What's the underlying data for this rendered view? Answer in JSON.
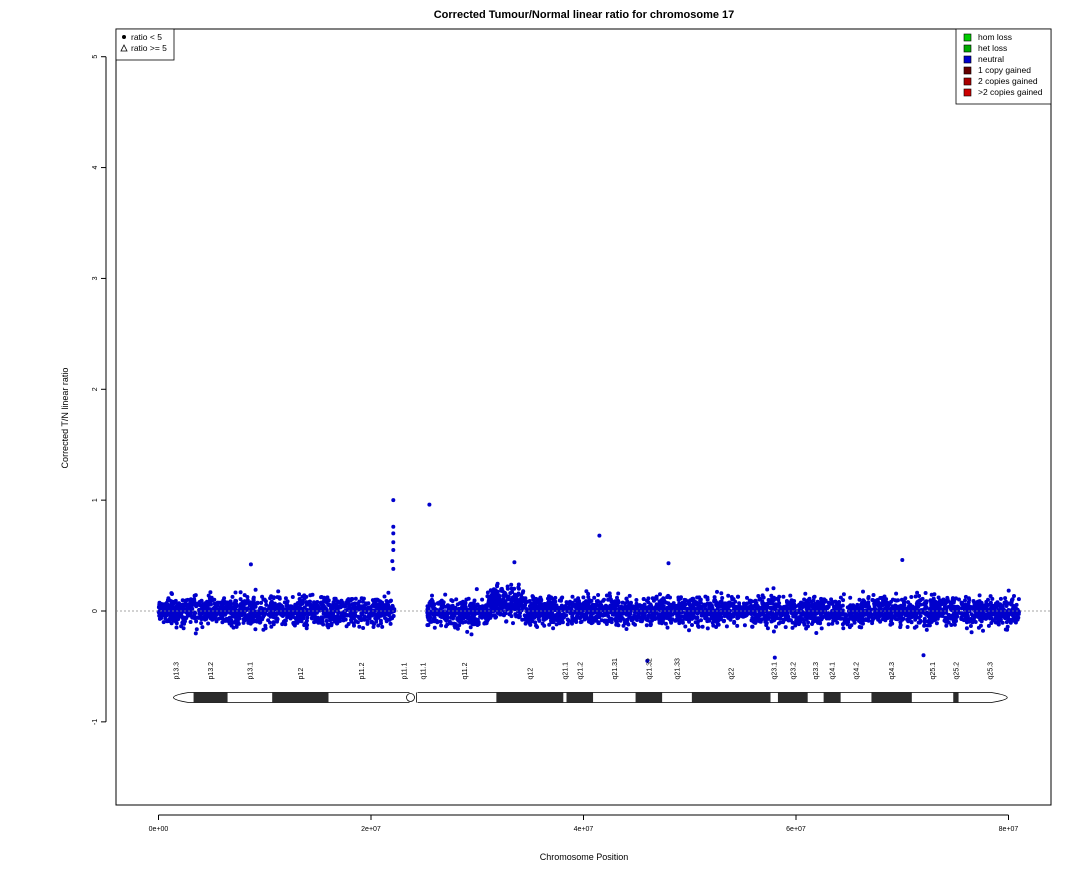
{
  "chart_data": {
    "type": "scatter",
    "title": "Corrected Tumour/Normal linear ratio for chromosome  17",
    "xlabel": "Chromosome Position",
    "ylabel": "Corrected T/N linear ratio",
    "xlim": [
      -4000000,
      84000000
    ],
    "ylim": [
      -1.75,
      5.25
    ],
    "x_ticks": [
      0,
      20000000,
      40000000,
      60000000,
      80000000
    ],
    "x_tick_labels": [
      "0e+00",
      "2e+07",
      "4e+07",
      "6e+07",
      "8e+07"
    ],
    "y_ticks": [
      -1,
      0,
      1,
      2,
      3,
      4,
      5
    ],
    "y_tick_labels": [
      "-1",
      "0",
      "1",
      "2",
      "3",
      "4",
      "5"
    ],
    "reference_line_y": 0,
    "point_color": "#0000cc",
    "legend_shape": {
      "position": "top-left",
      "items": [
        {
          "label": "ratio < 5",
          "marker": "filled-circle"
        },
        {
          "label": "ratio >= 5",
          "marker": "open-triangle"
        }
      ]
    },
    "legend_state": {
      "position": "top-right",
      "items": [
        {
          "label": "hom loss",
          "color": "#00cc00"
        },
        {
          "label": "het loss",
          "color": "#00aa00"
        },
        {
          "label": "neutral",
          "color": "#0000cc"
        },
        {
          "label": "1 copy gained",
          "color": "#660000"
        },
        {
          "label": "2 copies gained",
          "color": "#aa0000"
        },
        {
          "label": ">2 copies gained",
          "color": "#cc0000"
        }
      ]
    },
    "series": [
      {
        "segments": [
          {
            "start": 0,
            "end": 22200000,
            "mean": 0.0,
            "sd": 0.1,
            "count": 1250
          },
          {
            "start": 25300000,
            "end": 31000000,
            "mean": -0.02,
            "sd": 0.1,
            "count": 320
          },
          {
            "start": 31000000,
            "end": 34500000,
            "mean": 0.07,
            "sd": 0.11,
            "count": 230
          },
          {
            "start": 34500000,
            "end": 81000000,
            "mean": 0.0,
            "sd": 0.1,
            "count": 2700
          }
        ],
        "highlight_points": [
          {
            "x": 22100000,
            "y": 1.0
          },
          {
            "x": 22100000,
            "y": 0.76
          },
          {
            "x": 22100000,
            "y": 0.7
          },
          {
            "x": 22100000,
            "y": 0.62
          },
          {
            "x": 22100000,
            "y": 0.55
          },
          {
            "x": 22000000,
            "y": 0.45
          },
          {
            "x": 22100000,
            "y": 0.38
          },
          {
            "x": 25500000,
            "y": 0.96
          },
          {
            "x": 41500000,
            "y": 0.68
          },
          {
            "x": 46000000,
            "y": -0.45
          },
          {
            "x": 72000000,
            "y": -0.4
          },
          {
            "x": 58000000,
            "y": -0.42
          },
          {
            "x": 70000000,
            "y": 0.46
          },
          {
            "x": 33500000,
            "y": 0.44
          },
          {
            "x": 8700000,
            "y": 0.42
          },
          {
            "x": 48000000,
            "y": 0.43
          }
        ]
      }
    ],
    "ideogram": {
      "y": -0.78,
      "centromere": 24000000,
      "bands": [
        {
          "name": "p13.3",
          "start": 0,
          "end": 3300000,
          "stain": "gneg"
        },
        {
          "name": "p13.2",
          "start": 3300000,
          "end": 6500000,
          "stain": "gpos"
        },
        {
          "name": "p13.1",
          "start": 6500000,
          "end": 10700000,
          "stain": "gneg"
        },
        {
          "name": "p12",
          "start": 10700000,
          "end": 16000000,
          "stain": "gpos"
        },
        {
          "name": "p11.2",
          "start": 16000000,
          "end": 22200000,
          "stain": "gneg"
        },
        {
          "name": "p11.1",
          "start": 22200000,
          "end": 24000000,
          "stain": "acen"
        },
        {
          "name": "q11.1",
          "start": 24000000,
          "end": 25800000,
          "stain": "acen"
        },
        {
          "name": "q11.2",
          "start": 25800000,
          "end": 31800000,
          "stain": "gneg"
        },
        {
          "name": "q12",
          "start": 31800000,
          "end": 38100000,
          "stain": "gpos"
        },
        {
          "name": "q21.1",
          "start": 38100000,
          "end": 38400000,
          "stain": "gneg"
        },
        {
          "name": "q21.2",
          "start": 38400000,
          "end": 40900000,
          "stain": "gpos"
        },
        {
          "name": "q21.31",
          "start": 40900000,
          "end": 44900000,
          "stain": "gneg"
        },
        {
          "name": "q21.32",
          "start": 44900000,
          "end": 47400000,
          "stain": "gpos"
        },
        {
          "name": "q21.33",
          "start": 47400000,
          "end": 50200000,
          "stain": "gneg"
        },
        {
          "name": "q22",
          "start": 50200000,
          "end": 57600000,
          "stain": "gpos"
        },
        {
          "name": "q23.1",
          "start": 57600000,
          "end": 58300000,
          "stain": "gneg"
        },
        {
          "name": "q23.2",
          "start": 58300000,
          "end": 61100000,
          "stain": "gpos"
        },
        {
          "name": "q23.3",
          "start": 61100000,
          "end": 62600000,
          "stain": "gneg"
        },
        {
          "name": "q24.1",
          "start": 62600000,
          "end": 64200000,
          "stain": "gpos"
        },
        {
          "name": "q24.2",
          "start": 64200000,
          "end": 67100000,
          "stain": "gneg"
        },
        {
          "name": "q24.3",
          "start": 67100000,
          "end": 70900000,
          "stain": "gpos"
        },
        {
          "name": "q25.1",
          "start": 70900000,
          "end": 74800000,
          "stain": "gneg"
        },
        {
          "name": "q25.2",
          "start": 74800000,
          "end": 75300000,
          "stain": "gpos"
        },
        {
          "name": "q25.3",
          "start": 75300000,
          "end": 81200000,
          "stain": "gneg"
        }
      ]
    }
  }
}
